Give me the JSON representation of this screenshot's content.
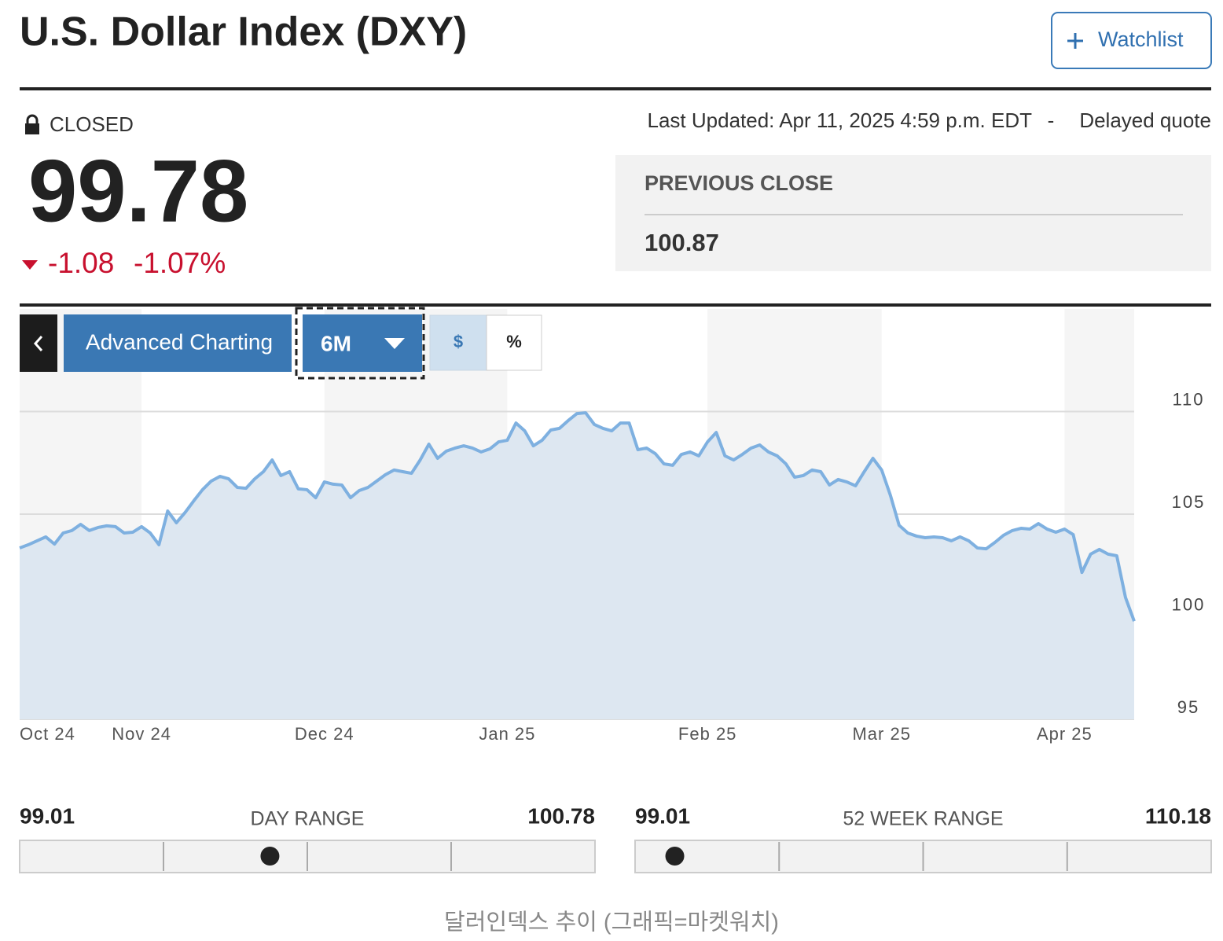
{
  "header": {
    "title": "U.S. Dollar Index (DXY)",
    "watchlist": "Watchlist"
  },
  "status": {
    "market": "CLOSED",
    "last_updated": "Last Updated: Apr 11, 2025 4:59 p.m. EDT",
    "separator": "-",
    "delayed": "Delayed quote"
  },
  "quote": {
    "price": "99.78",
    "change": "-1.08",
    "change_percent": "-1.07%"
  },
  "previous_close": {
    "label": "PREVIOUS CLOSE",
    "value": "100.87"
  },
  "controls": {
    "advanced": "Advanced Charting",
    "period": "6M",
    "dollar": "$",
    "percent": "%"
  },
  "chart_data": {
    "type": "line",
    "color": "#7eb0e0",
    "area_color": "#dde7f1",
    "categories": [
      "Oct 24",
      null,
      null,
      null,
      null,
      null,
      null,
      null,
      null,
      null,
      null,
      null,
      null,
      null,
      "Nov 24",
      null,
      null,
      null,
      null,
      null,
      null,
      null,
      null,
      null,
      null,
      null,
      null,
      null,
      null,
      null,
      null,
      null,
      null,
      null,
      null,
      "Dec 24",
      null,
      null,
      null,
      null,
      null,
      null,
      null,
      null,
      null,
      null,
      null,
      null,
      null,
      null,
      null,
      null,
      null,
      null,
      null,
      null,
      "Jan 25",
      null,
      null,
      null,
      null,
      null,
      null,
      null,
      null,
      null,
      null,
      null,
      null,
      null,
      null,
      null,
      null,
      null,
      null,
      null,
      null,
      null,
      null,
      "Feb 25",
      null,
      null,
      null,
      null,
      null,
      null,
      null,
      null,
      null,
      null,
      null,
      null,
      null,
      null,
      null,
      null,
      null,
      null,
      null,
      "Mar 25",
      null,
      null,
      null,
      null,
      null,
      null,
      null,
      null,
      null,
      null,
      null,
      null,
      null,
      null,
      null,
      null,
      null,
      null,
      null,
      null,
      "Apr 25",
      null,
      null,
      null,
      null,
      null,
      null,
      null,
      null
    ],
    "values": [
      103.35,
      103.51,
      103.7,
      103.89,
      103.54,
      104.08,
      104.2,
      104.5,
      104.2,
      104.35,
      104.43,
      104.39,
      104.08,
      104.12,
      104.39,
      104.08,
      103.51,
      105.15,
      104.58,
      105.08,
      105.65,
      106.19,
      106.61,
      106.84,
      106.72,
      106.3,
      106.26,
      106.72,
      107.07,
      107.64,
      106.88,
      107.07,
      106.23,
      106.19,
      105.8,
      106.57,
      106.46,
      106.42,
      105.8,
      106.15,
      106.3,
      106.61,
      106.92,
      107.15,
      107.07,
      106.99,
      107.64,
      108.41,
      107.72,
      108.07,
      108.22,
      108.33,
      108.22,
      108.03,
      108.18,
      108.52,
      108.6,
      109.44,
      109.06,
      108.33,
      108.6,
      109.1,
      109.18,
      109.56,
      109.9,
      109.94,
      109.37,
      109.18,
      109.06,
      109.44,
      109.44,
      108.14,
      108.22,
      107.95,
      107.45,
      107.38,
      107.91,
      108.03,
      107.84,
      108.52,
      108.98,
      107.84,
      107.64,
      107.91,
      108.22,
      108.37,
      108.03,
      107.84,
      107.45,
      106.8,
      106.88,
      107.15,
      107.07,
      106.42,
      106.69,
      106.57,
      106.38,
      107.07,
      107.72,
      107.15,
      105.92,
      104.46,
      104.08,
      103.93,
      103.85,
      103.89,
      103.85,
      103.7,
      103.89,
      103.7,
      103.35,
      103.31,
      103.62,
      103.97,
      104.2,
      104.31,
      104.27,
      104.54,
      104.27,
      104.12,
      104.27,
      104.0,
      102.16,
      103.05,
      103.28,
      103.05,
      102.97,
      100.94,
      99.78
    ],
    "ylim": [
      95,
      115
    ],
    "yticks": [
      95,
      100,
      105,
      110
    ],
    "grid": true
  },
  "ranges": [
    {
      "low": "99.01",
      "label": "DAY RANGE",
      "high": "100.78"
    },
    {
      "low": "99.01",
      "label": "52 WEEK RANGE",
      "high": "110.18"
    }
  ],
  "caption": "달러인덱스 추이 (그래픽=마켓워치)"
}
